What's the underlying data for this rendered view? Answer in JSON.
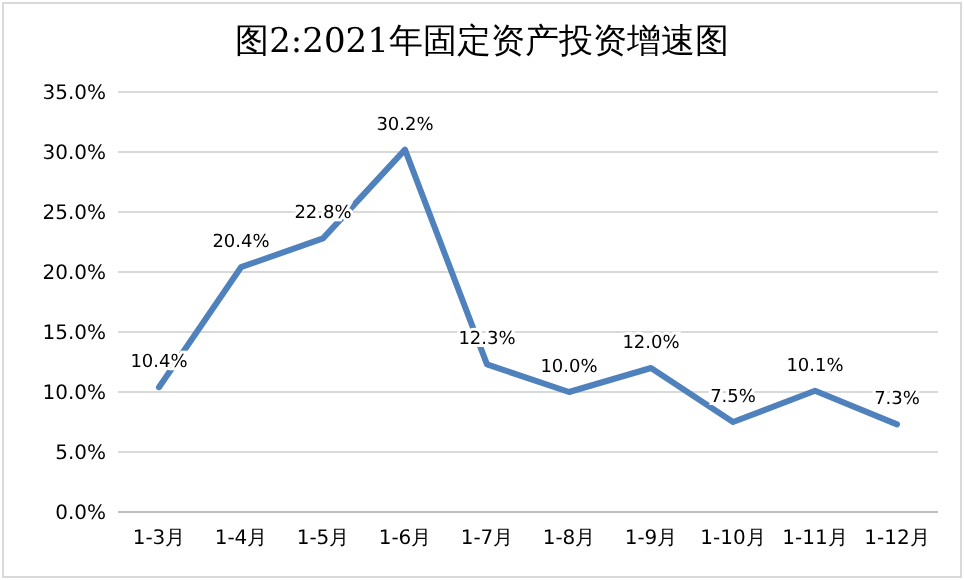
{
  "chart_data": {
    "type": "line",
    "title": "图2:2021年固定资产投资增速图",
    "categories": [
      "1-3月",
      "1-4月",
      "1-5月",
      "1-6月",
      "1-7月",
      "1-8月",
      "1-9月",
      "1-10月",
      "1-11月",
      "1-12月"
    ],
    "series": [
      {
        "color": "#4f81bd",
        "values": [
          10.4,
          20.4,
          22.8,
          30.2,
          12.3,
          10.0,
          12.0,
          7.5,
          10.1,
          7.3
        ],
        "value_labels": [
          "10.4%",
          "20.4%",
          "22.8%",
          "30.2%",
          "12.3%",
          "10.0%",
          "12.0%",
          "7.5%",
          "10.1%",
          "7.3%"
        ]
      }
    ],
    "ylim": [
      0,
      35
    ],
    "yticks": [
      {
        "value": 0,
        "label": "0.0%"
      },
      {
        "value": 5,
        "label": "5.0%"
      },
      {
        "value": 10,
        "label": "10.0%"
      },
      {
        "value": 15,
        "label": "15.0%"
      },
      {
        "value": 20,
        "label": "20.0%"
      },
      {
        "value": 25,
        "label": "25.0%"
      },
      {
        "value": 30,
        "label": "30.0%"
      },
      {
        "value": 35,
        "label": "35.0%"
      }
    ],
    "grid": "y",
    "marker": "none",
    "line_style": "solid"
  }
}
